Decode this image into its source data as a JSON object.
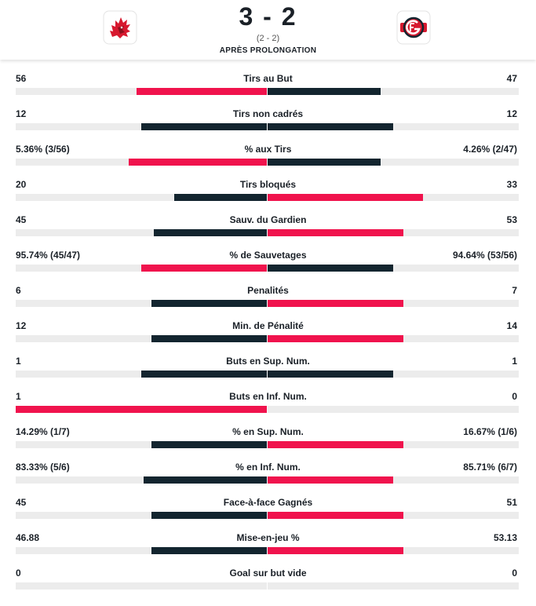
{
  "header": {
    "score": "3 - 2",
    "period_score": "(2 - 2)",
    "status": "APRÈS PROLONGATION",
    "home_logo_icon": "lion-head-icon",
    "away_logo_icon": "fribourg-gotteron-crest-icon"
  },
  "colors": {
    "leader": "#f0134d",
    "trailer": "#13252f",
    "track": "#ececec"
  },
  "stats": [
    {
      "name": "Tirs au But",
      "home": "56",
      "away": "47",
      "home_share": 0.52,
      "away_share": 0.45,
      "home_leads": true,
      "away_leads": false
    },
    {
      "name": "Tirs non cadrés",
      "home": "12",
      "away": "12",
      "home_share": 0.5,
      "away_share": 0.5,
      "home_leads": false,
      "away_leads": false
    },
    {
      "name": "% aux Tirs",
      "home": "5.36% (3/56)",
      "away": "4.26% (2/47)",
      "home_share": 0.55,
      "away_share": 0.45,
      "home_leads": true,
      "away_leads": false
    },
    {
      "name": "Tirs bloqués",
      "home": "20",
      "away": "33",
      "home_share": 0.37,
      "away_share": 0.62,
      "home_leads": false,
      "away_leads": true
    },
    {
      "name": "Sauv. du Gardien",
      "home": "45",
      "away": "53",
      "home_share": 0.45,
      "away_share": 0.54,
      "home_leads": false,
      "away_leads": true
    },
    {
      "name": "% de Sauvetages",
      "home": "95.74% (45/47)",
      "away": "94.64% (53/56)",
      "home_share": 0.5,
      "away_share": 0.5,
      "home_leads": true,
      "away_leads": false
    },
    {
      "name": "Penalités",
      "home": "6",
      "away": "7",
      "home_share": 0.46,
      "away_share": 0.54,
      "home_leads": false,
      "away_leads": true
    },
    {
      "name": "Min. de Pénalité",
      "home": "12",
      "away": "14",
      "home_share": 0.46,
      "away_share": 0.54,
      "home_leads": false,
      "away_leads": true
    },
    {
      "name": "Buts en Sup. Num.",
      "home": "1",
      "away": "1",
      "home_share": 0.5,
      "away_share": 0.5,
      "home_leads": false,
      "away_leads": false
    },
    {
      "name": "Buts en Inf. Num.",
      "home": "1",
      "away": "0",
      "home_share": 1.0,
      "away_share": 0.0,
      "home_leads": true,
      "away_leads": false
    },
    {
      "name": "% en Sup. Num.",
      "home": "14.29% (1/7)",
      "away": "16.67% (1/6)",
      "home_share": 0.46,
      "away_share": 0.54,
      "home_leads": false,
      "away_leads": true
    },
    {
      "name": "% en Inf. Num.",
      "home": "83.33% (5/6)",
      "away": "85.71% (6/7)",
      "home_share": 0.49,
      "away_share": 0.5,
      "home_leads": false,
      "away_leads": true
    },
    {
      "name": "Face-à-face Gagnés",
      "home": "45",
      "away": "51",
      "home_share": 0.46,
      "away_share": 0.54,
      "home_leads": false,
      "away_leads": true
    },
    {
      "name": "Mise-en-jeu %",
      "home": "46.88",
      "away": "53.13",
      "home_share": 0.46,
      "away_share": 0.54,
      "home_leads": false,
      "away_leads": true
    },
    {
      "name": "Goal sur but vide",
      "home": "0",
      "away": "0",
      "home_share": 0.0,
      "away_share": 0.0,
      "home_leads": false,
      "away_leads": false
    }
  ]
}
